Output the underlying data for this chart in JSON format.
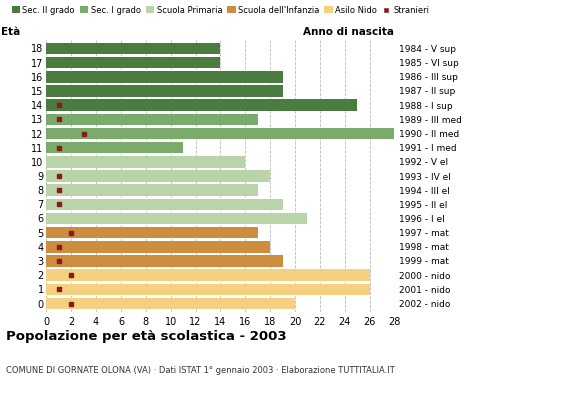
{
  "ages": [
    18,
    17,
    16,
    15,
    14,
    13,
    12,
    11,
    10,
    9,
    8,
    7,
    6,
    5,
    4,
    3,
    2,
    1,
    0
  ],
  "years": [
    "1984 - V sup",
    "1985 - VI sup",
    "1986 - III sup",
    "1987 - II sup",
    "1988 - I sup",
    "1989 - III med",
    "1990 - II med",
    "1991 - I med",
    "1992 - V el",
    "1993 - IV el",
    "1994 - III el",
    "1995 - II el",
    "1996 - I el",
    "1997 - mat",
    "1998 - mat",
    "1999 - mat",
    "2000 - nido",
    "2001 - nido",
    "2002 - nido"
  ],
  "bar_values": [
    14,
    14,
    19,
    19,
    25,
    17,
    28,
    11,
    16,
    18,
    17,
    19,
    21,
    17,
    18,
    19,
    26,
    26,
    20
  ],
  "stranieri_x_positions": [
    0,
    0,
    0,
    0,
    1,
    1,
    3,
    1,
    0,
    1,
    1,
    1,
    0,
    2,
    1,
    1,
    2,
    1,
    2
  ],
  "bar_colors_by_age": {
    "18": "#4a7c3f",
    "17": "#4a7c3f",
    "16": "#4a7c3f",
    "15": "#4a7c3f",
    "14": "#4a7c3f",
    "13": "#7aab6b",
    "12": "#7aab6b",
    "11": "#7aab6b",
    "10": "#b8d4a8",
    "9": "#b8d4a8",
    "8": "#b8d4a8",
    "7": "#b8d4a8",
    "6": "#b8d4a8",
    "5": "#cd8c3e",
    "4": "#cd8c3e",
    "3": "#cd8c3e",
    "2": "#f5d080",
    "1": "#f5d080",
    "0": "#f5d080"
  },
  "stranieri_color": "#8b1a1a",
  "legend_labels": [
    "Sec. II grado",
    "Sec. I grado",
    "Scuola Primaria",
    "Scuola dell'Infanzia",
    "Asilo Nido",
    "Stranieri"
  ],
  "legend_colors": [
    "#4a7c3f",
    "#7aab6b",
    "#b8d4a8",
    "#cd8c3e",
    "#f5d080",
    "#8b1a1a"
  ],
  "title": "Popolazione per età scolastica - 2003",
  "subtitle": "COMUNE DI GORNATE OLONA (VA) · Dati ISTAT 1° gennaio 2003 · Elaborazione TUTTITALIA.IT",
  "label_eta": "Età",
  "label_anno": "Anno di nascita",
  "xlim": [
    0,
    28
  ],
  "xticks": [
    0,
    2,
    4,
    6,
    8,
    10,
    12,
    14,
    16,
    18,
    20,
    22,
    24,
    26,
    28
  ],
  "background_color": "#ffffff",
  "grid_color": "#bbbbbb",
  "bar_height": 0.82
}
